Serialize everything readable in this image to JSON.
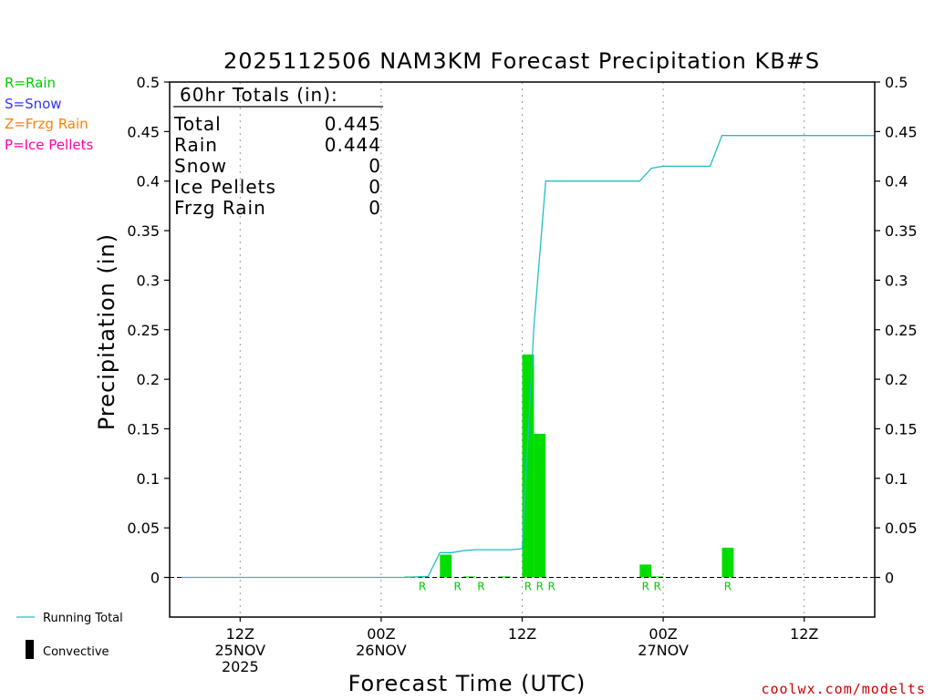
{
  "title": "2025112506 NAM3KM Forecast Precipitation KB#S",
  "xlabel": "Forecast Time (UTC)",
  "ylabel": "Precipitation (in)",
  "credit": "coolwx.com/modelts",
  "type_legend": [
    {
      "text": "R=Rain",
      "color": "#00cc00"
    },
    {
      "text": "S=Snow",
      "color": "#3333ff"
    },
    {
      "text": "Z=Frzg Rain",
      "color": "#ff8000"
    },
    {
      "text": "P=Ice Pellets",
      "color": "#ff00aa"
    }
  ],
  "bottom_legend": {
    "running_total": "Running Total",
    "convective": "Convective"
  },
  "totals": {
    "header": "60hr Totals (in):",
    "rows": [
      {
        "label": "Total",
        "value": "0.445"
      },
      {
        "label": "Rain",
        "value": "0.444"
      },
      {
        "label": "Snow",
        "value": "0"
      },
      {
        "label": "Ice Pellets",
        "value": "0"
      },
      {
        "label": "Frzg Rain",
        "value": "0"
      }
    ]
  },
  "colors": {
    "bar": "#00dd00",
    "running_total": "#20c0c0",
    "zero_line": "#000000",
    "grid": "#999999",
    "ptype": "#00cc00",
    "credit": "#cc0000"
  },
  "chart_data": {
    "type": "bar",
    "x_units": "forecast hour from 2025-11-25 06Z",
    "xlim": [
      0,
      60
    ],
    "ylim": [
      -0.04,
      0.5
    ],
    "yticks": [
      0,
      0.05,
      0.1,
      0.15,
      0.2,
      0.25,
      0.3,
      0.35,
      0.4,
      0.45,
      0.5
    ],
    "ytick_labels": [
      "0",
      "0.05",
      "0.1",
      "0.15",
      "0.2",
      "0.25",
      "0.3",
      "0.35",
      "0.4",
      "0.45",
      "0.5"
    ],
    "xticks": [
      {
        "hour": 6,
        "lines": [
          "12Z",
          "25NOV",
          "2025"
        ]
      },
      {
        "hour": 18,
        "lines": [
          "00Z",
          "26NOV"
        ]
      },
      {
        "hour": 30,
        "lines": [
          "12Z"
        ]
      },
      {
        "hour": 42,
        "lines": [
          "00Z",
          "27NOV"
        ]
      },
      {
        "hour": 54,
        "lines": [
          "12Z"
        ]
      }
    ],
    "series": [
      {
        "name": "Running Total",
        "kind": "line",
        "x": [
          1,
          20,
          22,
          23,
          24,
          25,
          26,
          27,
          28,
          29,
          30,
          31,
          32,
          35,
          36,
          37,
          38,
          39,
          40,
          41,
          42,
          43,
          44,
          45,
          46,
          47,
          48,
          49,
          50,
          51,
          52,
          53,
          54,
          55,
          56,
          57,
          58,
          59,
          60
        ],
        "y": [
          0,
          0,
          0.001,
          0.025,
          0.025,
          0.027,
          0.028,
          0.028,
          0.028,
          0.028,
          0.029,
          0.254,
          0.4,
          0.4,
          0.4,
          0.4,
          0.4,
          0.4,
          0.4,
          0.413,
          0.415,
          0.415,
          0.415,
          0.415,
          0.415,
          0.446,
          0.446,
          0.446,
          0.446,
          0.446,
          0.446,
          0.446,
          0.446,
          0.446,
          0.446,
          0.446,
          0.446,
          0.446,
          0.446
        ]
      },
      {
        "name": "Rain",
        "kind": "bar",
        "x": [
          21,
          22,
          24,
          26,
          29,
          31,
          32,
          41,
          42,
          48
        ],
        "y": [
          0.001,
          0.001,
          0.023,
          0.001,
          0.001,
          0.225,
          0.145,
          0.013,
          0.001,
          0.03
        ]
      }
    ],
    "ptype_labels": [
      {
        "hour": 21.5,
        "text": "R"
      },
      {
        "hour": 24.5,
        "text": "R"
      },
      {
        "hour": 26.5,
        "text": "R"
      },
      {
        "hour": 30.5,
        "text": "R"
      },
      {
        "hour": 31.5,
        "text": "R"
      },
      {
        "hour": 32.5,
        "text": "R"
      },
      {
        "hour": 40.5,
        "text": "R"
      },
      {
        "hour": 41.5,
        "text": "R"
      },
      {
        "hour": 47.5,
        "text": "R"
      }
    ]
  }
}
